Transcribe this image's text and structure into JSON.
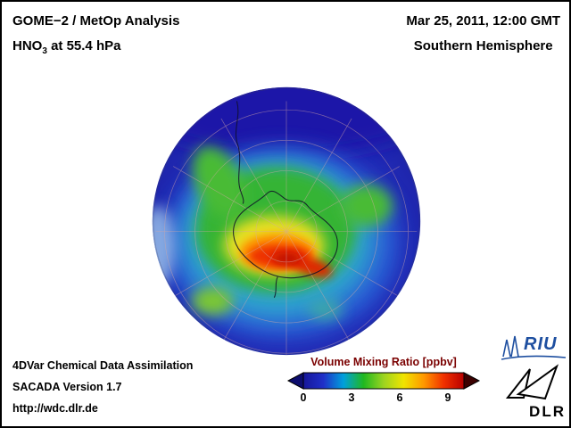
{
  "page": {
    "background": "#ffffff",
    "border_color": "#000000"
  },
  "header": {
    "title": "GOME−2 / MetOp Analysis",
    "product_prefix": "HNO",
    "product_sub": "3",
    "product_suffix": " at 55.4 hPa",
    "datetime": "Mar 25, 2011, 12:00 GMT",
    "region": "Southern Hemisphere"
  },
  "footer": {
    "line1": "4DVar Chemical Data Assimilation",
    "line2": "SACADA Version 1.7",
    "line3": "http://wdc.dlr.de"
  },
  "colorbar": {
    "title": "Volume Mixing Ratio [ppbv]",
    "title_color": "#7a0000",
    "units": "ppbv",
    "stops": [
      "#16169a",
      "#2030c8",
      "#00a0dc",
      "#20b820",
      "#9cd420",
      "#f0e400",
      "#ff9800",
      "#f03000",
      "#b80000"
    ],
    "arrow_left": "#0d0d6e",
    "arrow_right": "#3c0000",
    "ticks": [
      "0",
      "3",
      "6",
      "9"
    ]
  },
  "logos": {
    "riu_text": "RIU",
    "riu_color": "#1e4fa0",
    "dlr_text": "DLR"
  },
  "chart_data": {
    "type": "heatmap",
    "title": "GOME−2 / MetOp Analysis — HNO3 at 55.4 hPa",
    "datetime": "Mar 25, 2011, 12:00 GMT",
    "region": "Southern Hemisphere",
    "projection": "south polar orthographic globe",
    "variable": "HNO3 Volume Mixing Ratio",
    "units": "ppbv",
    "scale_range": [
      0,
      10
    ],
    "tick_values": [
      0,
      3,
      6,
      9
    ],
    "colormap": [
      {
        "value": 0,
        "color": "#16169a"
      },
      {
        "value": 1.25,
        "color": "#2030c8"
      },
      {
        "value": 2.5,
        "color": "#00a0dc"
      },
      {
        "value": 3.75,
        "color": "#20b820"
      },
      {
        "value": 5,
        "color": "#9cd420"
      },
      {
        "value": 6.25,
        "color": "#f0e400"
      },
      {
        "value": 7.5,
        "color": "#ff9800"
      },
      {
        "value": 8.75,
        "color": "#f03000"
      },
      {
        "value": 10,
        "color": "#b80000"
      }
    ],
    "features": [
      {
        "area": "core over central Antarctica (polar vortex)",
        "approx_value_ppbv": 8.5
      },
      {
        "area": "crescent southeast of pole",
        "approx_value_ppbv": 9
      },
      {
        "area": "ring around Antarctica (~60-70°S)",
        "approx_value_ppbv": 4.5
      },
      {
        "area": "mid-latitude ring (~40-55°S)",
        "approx_value_ppbv": 2.5
      },
      {
        "area": "outer low-latitude edge of disk",
        "approx_value_ppbv": 1
      },
      {
        "area": "green tongue extending northwest",
        "approx_value_ppbv": 4
      }
    ],
    "legend_position": "bottom-center",
    "grid": "graticule every 30° longitude / 10° latitude"
  }
}
